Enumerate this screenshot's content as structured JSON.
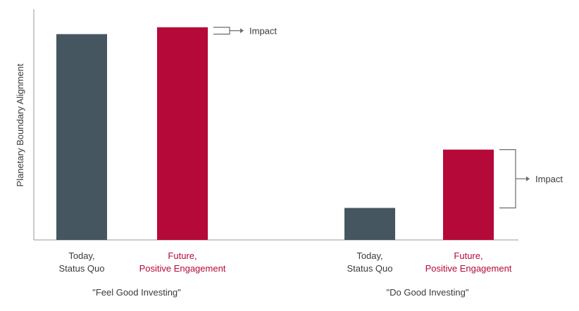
{
  "chart_data": {
    "type": "bar",
    "title": "",
    "xlabel": "",
    "ylabel": "Planetary Boundary Alignment",
    "ylim": [
      0,
      100
    ],
    "grid": false,
    "groups": [
      {
        "label": "\"Feel Good Investing\"",
        "bars": [
          {
            "line1": "Today,",
            "line2": "Status Quo",
            "value": 90,
            "color": "#455660"
          },
          {
            "line1": "Future,",
            "line2": "Positive Engagement",
            "value": 93,
            "color": "#b5093a"
          }
        ],
        "impact_label": "Impact"
      },
      {
        "label": "\"Do Good Investing\"",
        "bars": [
          {
            "line1": "Today,",
            "line2": "Status Quo",
            "value": 14,
            "color": "#455660"
          },
          {
            "line1": "Future,",
            "line2": "Positive Engagement",
            "value": 39.5,
            "color": "#b5093a"
          }
        ],
        "impact_label": "Impact"
      }
    ]
  },
  "colors": {
    "axis": "#9a9a9a",
    "label_dark": "#3a3a3a",
    "label_accent": "#b5093a",
    "bracket": "#6b6b6b"
  }
}
